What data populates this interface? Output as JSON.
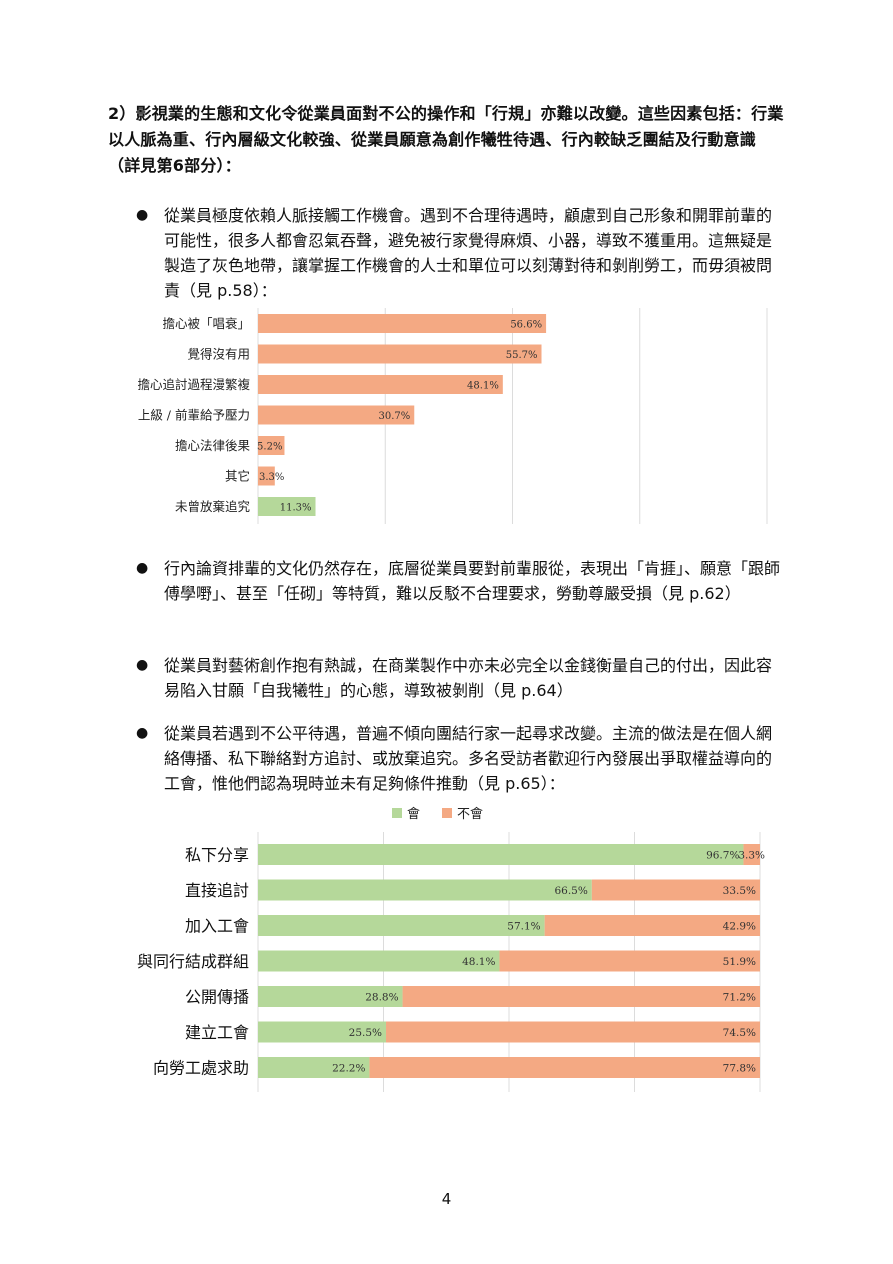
{
  "heading": "2）影視業的生態和文化令從業員面對不公的操作和「行規」亦難以改變。這些因素包括：行業以人脈為重、行內層級文化較強、從業員願意為創作犧牲待遇、行內較缺乏團結及行動意識（詳見第6部分）：",
  "bullets": [
    {
      "marker": "●",
      "text": "從業員極度依賴人脈接觸工作機會。遇到不合理待遇時，顧慮到自己形象和開罪前輩的可能性，很多人都會忍氣吞聲，避免被行家覺得麻煩、小器，導致不獲重用。這無疑是製造了灰色地帶，讓掌握工作機會的人士和單位可以刻薄對待和剝削勞工，而毋須被問責（見 p.58）："
    },
    {
      "marker": "●",
      "text": "行內論資排輩的文化仍然存在，底層從業員要對前輩服從，表現出「肯捱」、願意「跟師傅學嘢」、甚至「任砌」等特質，難以反駁不合理要求，勞動尊嚴受損（見 p.62）"
    },
    {
      "marker": "●",
      "text": "從業員對藝術創作抱有熱誠，在商業製作中亦未必完全以金錢衡量自己的付出，因此容易陷入甘願「自我犧牲」的心態，導致被剝削（見 p.64）"
    },
    {
      "marker": "●",
      "text": "從業員若遇到不公平待遇，普遍不傾向團結行家一起尋求改變。主流的做法是在個人網絡傳播、私下聯絡對方追討、或放棄追究。多名受訪者歡迎行內發展出爭取權益導向的工會，惟他們認為現時並未有足夠條件推動（見 p.65）："
    }
  ],
  "page_number": "4",
  "chart_data": [
    {
      "type": "bar",
      "orientation": "horizontal",
      "categories": [
        "擔心被「唱衰」",
        "覺得沒有用",
        "擔心追討過程漫繁複",
        "上級 / 前輩給予壓力",
        "擔心法律後果",
        "其它",
        "未曾放棄追究"
      ],
      "values": [
        56.6,
        55.7,
        48.1,
        30.7,
        5.2,
        3.3,
        11.3
      ],
      "labels": [
        "56.6%",
        "55.7%",
        "48.1%",
        "30.7%",
        "5.2%",
        "3.3%",
        "11.3%"
      ],
      "colors": [
        "#F4A983",
        "#F4A983",
        "#F4A983",
        "#F4A983",
        "#F4A983",
        "#F4A983",
        "#B5D89A"
      ],
      "xlim": [
        0,
        100
      ],
      "grid": true
    },
    {
      "type": "bar",
      "orientation": "horizontal",
      "stacked": true,
      "categories": [
        "私下分享",
        "直接追討",
        "加入工會",
        "與同行結成群組",
        "公開傳播",
        "建立工會",
        "向勞工處求助"
      ],
      "series": [
        {
          "name": "會",
          "color": "#B5D89A",
          "values": [
            96.7,
            66.5,
            57.1,
            48.1,
            28.8,
            25.5,
            22.2
          ],
          "labels": [
            "96.7%",
            "66.5%",
            "57.1%",
            "48.1%",
            "28.8%",
            "25.5%",
            "22.2%"
          ]
        },
        {
          "name": "不會",
          "color": "#F4A983",
          "values": [
            3.3,
            33.5,
            42.9,
            51.9,
            71.2,
            74.5,
            77.8
          ],
          "labels": [
            "3.3%",
            "33.5%",
            "42.9%",
            "51.9%",
            "71.2%",
            "74.5%",
            "77.8%"
          ]
        }
      ],
      "xlim": [
        0,
        100
      ],
      "legend": "top",
      "grid": true
    }
  ]
}
